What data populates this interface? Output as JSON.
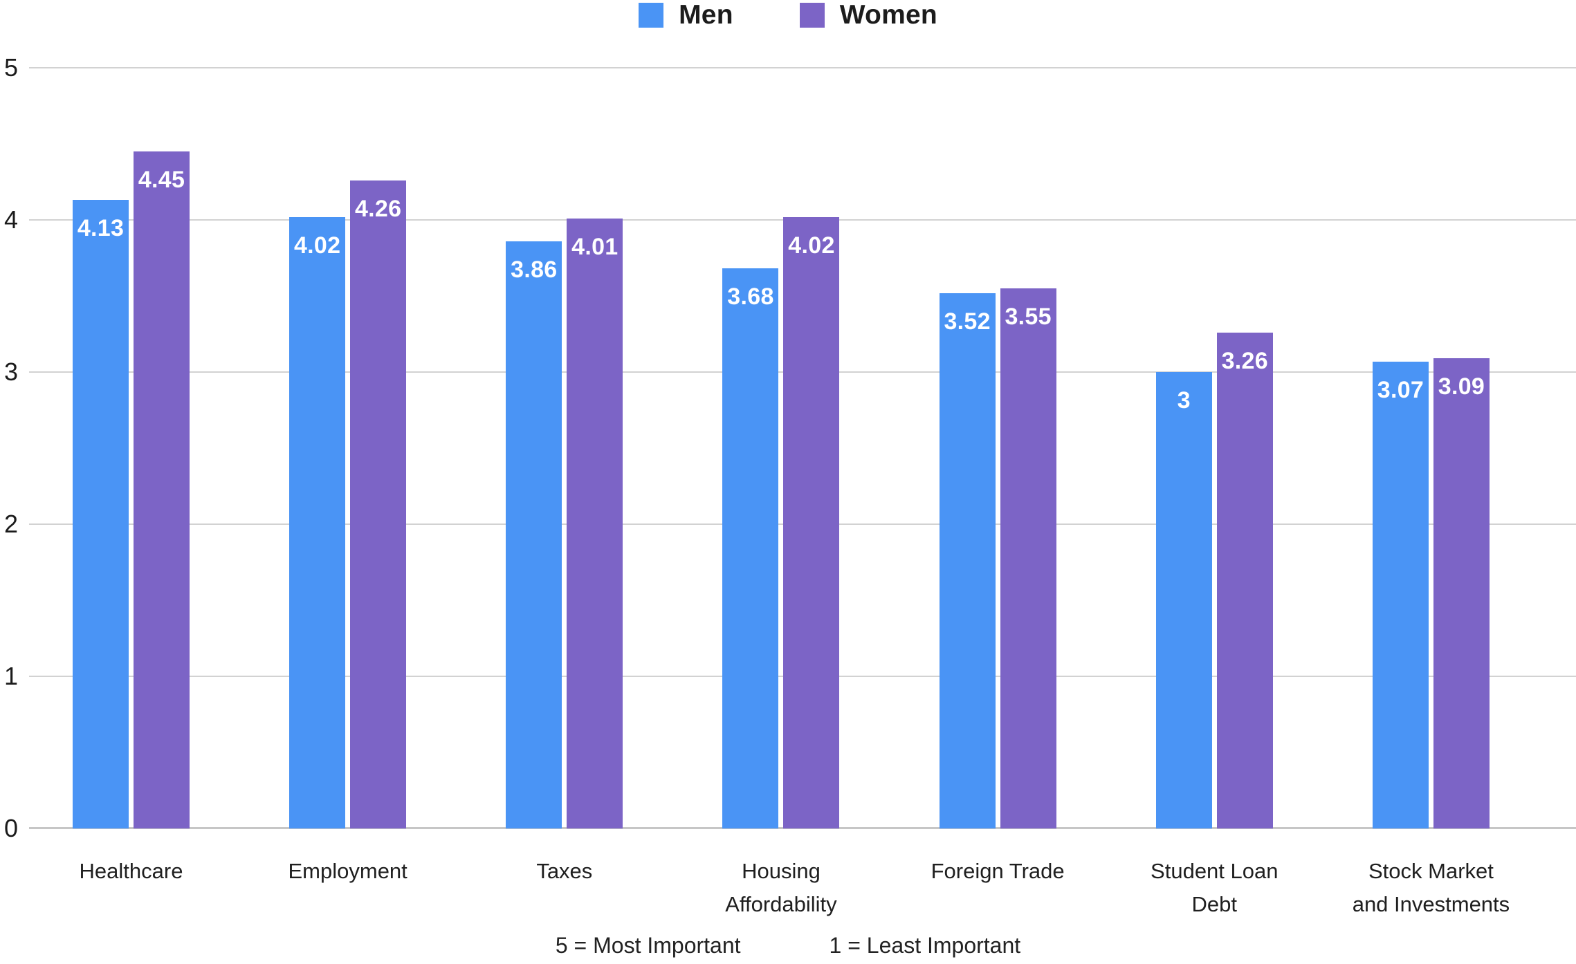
{
  "legend": {
    "items": [
      {
        "label": "Men",
        "color": "#4A94F5",
        "swatch_icon": "square-swatch-icon"
      },
      {
        "label": "Women",
        "color": "#7C64C6",
        "swatch_icon": "square-swatch-icon"
      }
    ],
    "position": "top-center"
  },
  "chart_data": {
    "type": "bar",
    "title": "",
    "xlabel": "",
    "ylabel": "",
    "categories": [
      "Healthcare",
      "Employment",
      "Taxes",
      "Housing\nAffordability",
      "Foreign Trade",
      "Student Loan\nDebt",
      "Stock Market\nand Investments"
    ],
    "series": [
      {
        "name": "Men",
        "color": "#4A94F5",
        "values": [
          4.13,
          4.02,
          3.86,
          3.68,
          3.52,
          3,
          3.07
        ],
        "value_labels": [
          "4.13",
          "4.02",
          "3.86",
          "3.68",
          "3.52",
          "3",
          "3.07"
        ]
      },
      {
        "name": "Women",
        "color": "#7C64C6",
        "values": [
          4.45,
          4.26,
          4.01,
          4.02,
          3.55,
          3.26,
          3.09
        ],
        "value_labels": [
          "4.45",
          "4.26",
          "4.01",
          "4.02",
          "3.55",
          "3.26",
          "3.09"
        ]
      }
    ],
    "ylim": [
      0,
      5
    ],
    "yticks": [
      0,
      1,
      2,
      3,
      4,
      5
    ],
    "grid": "horizontal",
    "gridline_color": "#d2d2d2",
    "value_label_color": "#ffffff",
    "legend_position": "top"
  },
  "footnotes": {
    "most": "5 = Most Important",
    "least": "1 = Least Important"
  }
}
